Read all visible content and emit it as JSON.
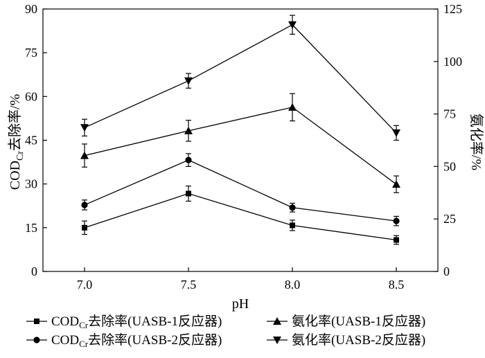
{
  "chart_data": {
    "type": "line",
    "x": [
      7.0,
      7.5,
      8.0,
      8.5
    ],
    "xlabel": "pH",
    "ylabel_left": "COD",
    "ylabel_left_sub": "Cr",
    "ylabel_left_rest": "去除率/%",
    "ylabel_right": "氨化率/%",
    "ylim_left": [
      0,
      90
    ],
    "ylim_right": [
      0,
      125
    ],
    "xlim": [
      6.8,
      8.7
    ],
    "yticks_left": [
      0,
      15,
      30,
      45,
      60,
      75,
      90
    ],
    "yticks_right": [
      0,
      25,
      50,
      75,
      100,
      125
    ],
    "xticks": [
      7.0,
      7.5,
      8.0,
      8.5
    ],
    "xtick_labels": [
      "7.0",
      "7.5",
      "8.0",
      "8.5"
    ],
    "grid": false,
    "legend_position": "bottom",
    "series": [
      {
        "axis": "left",
        "marker": "square",
        "legend_pre": "COD",
        "legend_sub": "Cr",
        "legend_post": "去除率(UASB-1反应器)",
        "values": [
          15,
          26.7,
          15.8,
          10.8
        ],
        "errors": [
          2.3,
          2.6,
          1.8,
          1.5
        ]
      },
      {
        "axis": "left",
        "marker": "circle",
        "legend_pre": "COD",
        "legend_sub": "Cr",
        "legend_post": "去除率(UASB-2反应器)",
        "values": [
          22.8,
          38.2,
          21.9,
          17.3
        ],
        "errors": [
          1.7,
          2.2,
          1.5,
          1.6
        ]
      },
      {
        "axis": "right",
        "marker": "triangle-up",
        "legend_pre": "",
        "legend_sub": "",
        "legend_post": "氨化率(UASB-1反应器)",
        "values": [
          55.2,
          67,
          78.2,
          41.5
        ],
        "errors": [
          5.5,
          5,
          6.5,
          4
        ]
      },
      {
        "axis": "right",
        "marker": "triangle-down",
        "legend_pre": "",
        "legend_sub": "",
        "legend_post": "氨化率(UASB-2反应器)",
        "values": [
          68.5,
          90.8,
          117.5,
          66
        ],
        "errors": [
          4,
          3.5,
          4.5,
          3.5
        ]
      }
    ]
  }
}
